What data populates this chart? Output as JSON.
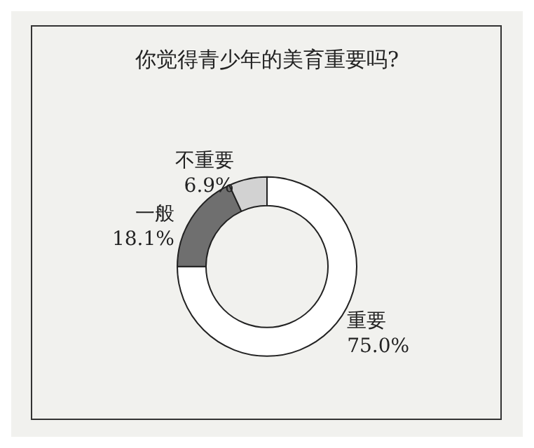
{
  "chart_data": {
    "type": "donut",
    "title": "你觉得青少年的美育重要吗?",
    "categories": [
      "重要",
      "一般",
      "不重要"
    ],
    "values": [
      75.0,
      18.1,
      6.9
    ],
    "colors": [
      "#ffffff",
      "#6f6f6f",
      "#d2d2d2"
    ],
    "value_labels": [
      "75.0%",
      "18.1%",
      "6.9%"
    ],
    "legend": false
  }
}
